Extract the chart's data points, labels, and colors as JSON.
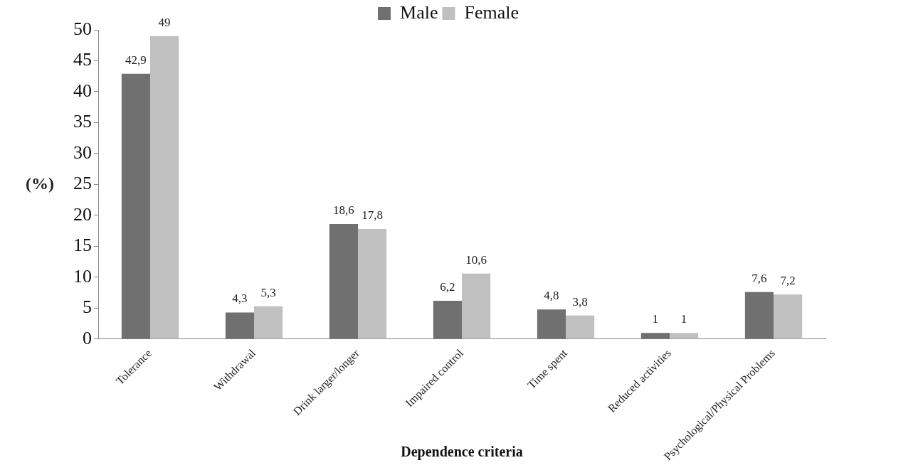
{
  "chart_data": {
    "type": "bar",
    "xlabel": "Dependence criteria",
    "ylabel": "(%)",
    "categories": [
      "Tolerance",
      "Withdrawal",
      "Drink larger/longer",
      "Impaired control",
      "Time spent",
      "Reduced activities",
      "Psychological/Physical Problems"
    ],
    "series": [
      {
        "name": "Male",
        "color": "#707070",
        "values": [
          42.9,
          4.3,
          18.6,
          6.2,
          4.8,
          1,
          7.6
        ],
        "value_labels": [
          "42,9",
          "4,3",
          "18,6",
          "6,2",
          "4,8",
          "1",
          "7,6"
        ]
      },
      {
        "name": "Female",
        "color": "#c0c0c0",
        "values": [
          49,
          5.3,
          17.8,
          10.6,
          3.8,
          1,
          7.2
        ],
        "value_labels": [
          "49",
          "5,3",
          "17,8",
          "10,6",
          "3,8",
          "1",
          "7,2"
        ]
      }
    ],
    "ylim": [
      0,
      50
    ],
    "yticks": [
      0,
      5,
      10,
      15,
      20,
      25,
      30,
      35,
      40,
      45,
      50
    ],
    "grid": false,
    "legend": "top"
  }
}
